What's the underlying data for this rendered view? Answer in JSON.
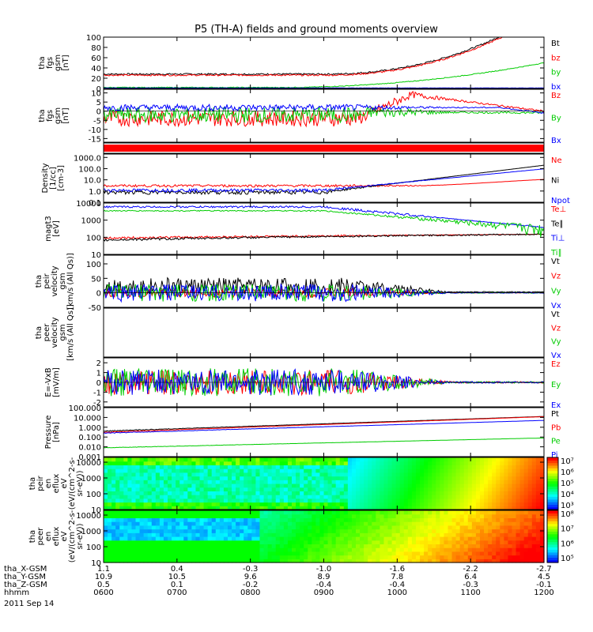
{
  "title": "P5 (TH-A) fields and ground moments overview",
  "chart_data": {
    "type": "line",
    "title": "P5 (TH-A) fields and ground moments overview",
    "date": "2011 Sep 14",
    "time_ticks": [
      "0600",
      "0700",
      "0800",
      "0900",
      "1000",
      "1100",
      "1200"
    ],
    "ephemeris": [
      {
        "label": "tha_X-GSM",
        "values": [
          "1.1",
          "0.4",
          "-0.3",
          "-1.0",
          "-1.6",
          "-2.2",
          "-2.7"
        ]
      },
      {
        "label": "tha_Y-GSM",
        "values": [
          "10.9",
          "10.5",
          "9.6",
          "8.9",
          "7.8",
          "6.4",
          "4.5"
        ]
      },
      {
        "label": "tha_Z-GSM",
        "values": [
          "0.5",
          "0.1",
          "-0.2",
          "-0.4",
          "-0.4",
          "-0.3",
          "-0.1"
        ]
      },
      {
        "label": "hhmm",
        "values": []
      }
    ],
    "panels": [
      {
        "id": "fgs_gsm",
        "ylabel": [
          "tha",
          "fgs",
          "gsm",
          "[nT]"
        ],
        "yticks": [
          "0",
          "20",
          "40",
          "60",
          "80",
          "100"
        ],
        "ylim": [
          0,
          100
        ],
        "legend": [
          {
            "name": "Bt",
            "color": "#000000"
          },
          {
            "name": "bz",
            "color": "#ff0000"
          },
          {
            "name": "by",
            "color": "#00cc00"
          },
          {
            "name": "bx",
            "color": "#0000ff"
          }
        ]
      },
      {
        "id": "fgs_dsl",
        "ylabel": [
          "tha",
          "fgs",
          "gsm",
          "[nT]"
        ],
        "yticks": [
          "-15",
          "-10",
          "-5",
          "0",
          "5",
          "10"
        ],
        "ylim": [
          -17,
          12
        ],
        "legend": [
          {
            "name": "Bz",
            "color": "#ff0000"
          },
          {
            "name": "By",
            "color": "#00cc00"
          },
          {
            "name": "Bx",
            "color": "#0000ff"
          }
        ]
      },
      {
        "id": "density",
        "ylabel": [
          "Density",
          "[1/cc]",
          "[cm-3]"
        ],
        "yticks": [
          "0.1",
          "1.0",
          "10.0",
          "100.0",
          "1000.0"
        ],
        "ylim": [
          0.1,
          2000
        ],
        "log": true,
        "legend": [
          {
            "name": "Ne",
            "color": "#ff0000"
          },
          {
            "name": "Ni",
            "color": "#000000"
          },
          {
            "name": "Npot",
            "color": "#0000ff"
          }
        ]
      },
      {
        "id": "temperature",
        "ylabel": [
          "magt3",
          "[eV]"
        ],
        "yticks": [
          "10",
          "100",
          "1000",
          "10000"
        ],
        "ylim": [
          10,
          10000
        ],
        "log": true,
        "legend": [
          {
            "name": "Te⊥",
            "color": "#ff0000"
          },
          {
            "name": "Te∥",
            "color": "#000000"
          },
          {
            "name": "Ti⊥",
            "color": "#0000ff"
          },
          {
            "name": "Ti∥",
            "color": "#00cc00"
          }
        ]
      },
      {
        "id": "ion_velocity",
        "ylabel": [
          "tha",
          "peir",
          "velocity",
          "gsm",
          "[km/s (All Qs)]"
        ],
        "yticks": [
          "-50",
          "0",
          "50",
          "100"
        ],
        "ylim": [
          -50,
          130
        ],
        "legend": [
          {
            "name": "Vt",
            "color": "#000000"
          },
          {
            "name": "Vz",
            "color": "#ff0000"
          },
          {
            "name": "Vy",
            "color": "#00cc00"
          },
          {
            "name": "Vx",
            "color": "#0000ff"
          }
        ]
      },
      {
        "id": "electron_velocity",
        "ylabel": [
          "tha",
          "peer",
          "velocity",
          "gsm",
          "[km/s (All Qs)]"
        ],
        "yticks": [],
        "ylim": [
          0,
          1
        ],
        "legend": [
          {
            "name": "Vt",
            "color": "#000000"
          },
          {
            "name": "Vz",
            "color": "#ff0000"
          },
          {
            "name": "Vy",
            "color": "#00cc00"
          },
          {
            "name": "Vx",
            "color": "#0000ff"
          }
        ]
      },
      {
        "id": "efield",
        "ylabel": [
          "E=-VxB",
          "[mV/m]"
        ],
        "yticks": [
          "-2",
          "-1",
          "0",
          "1",
          "2"
        ],
        "ylim": [
          -2.5,
          2.5
        ],
        "legend": [
          {
            "name": "Ez",
            "color": "#ff0000"
          },
          {
            "name": "Ey",
            "color": "#00cc00"
          },
          {
            "name": "Ex",
            "color": "#0000ff"
          }
        ]
      },
      {
        "id": "pressure",
        "ylabel": [
          "Pressure",
          "[nPa]"
        ],
        "yticks": [
          "0.001",
          "0.010",
          "0.100",
          "1.000",
          "10.000",
          "100.000"
        ],
        "ylim": [
          0.001,
          100
        ],
        "log": true,
        "legend": [
          {
            "name": "Pt",
            "color": "#000000"
          },
          {
            "name": "Pb",
            "color": "#ff0000"
          },
          {
            "name": "Pe",
            "color": "#00cc00"
          },
          {
            "name": "Pi",
            "color": "#0000ff"
          }
        ]
      },
      {
        "id": "ion_spec",
        "type": "heatmap",
        "ylabel": [
          "tha",
          "peir",
          "en",
          "eflux",
          "eV",
          "(eV/(cm^2-s-",
          "sr-eV))"
        ],
        "yticks": [
          "10",
          "100",
          "1000",
          "10000"
        ],
        "ylim": [
          10,
          20000
        ],
        "log": true,
        "colorbar": [
          "10³",
          "10⁴",
          "10⁵",
          "10⁶",
          "10⁷"
        ]
      },
      {
        "id": "electron_spec",
        "type": "heatmap",
        "ylabel": [
          "tha",
          "peer",
          "en",
          "eflux",
          "eV",
          "(eV/(cm^2-s-",
          "sr-eV))"
        ],
        "yticks": [
          "10",
          "100",
          "1000",
          "10000"
        ],
        "ylim": [
          10,
          20000
        ],
        "log": true,
        "colorbar": [
          "10⁵",
          "10⁶",
          "10⁷",
          "10⁸"
        ]
      }
    ]
  }
}
